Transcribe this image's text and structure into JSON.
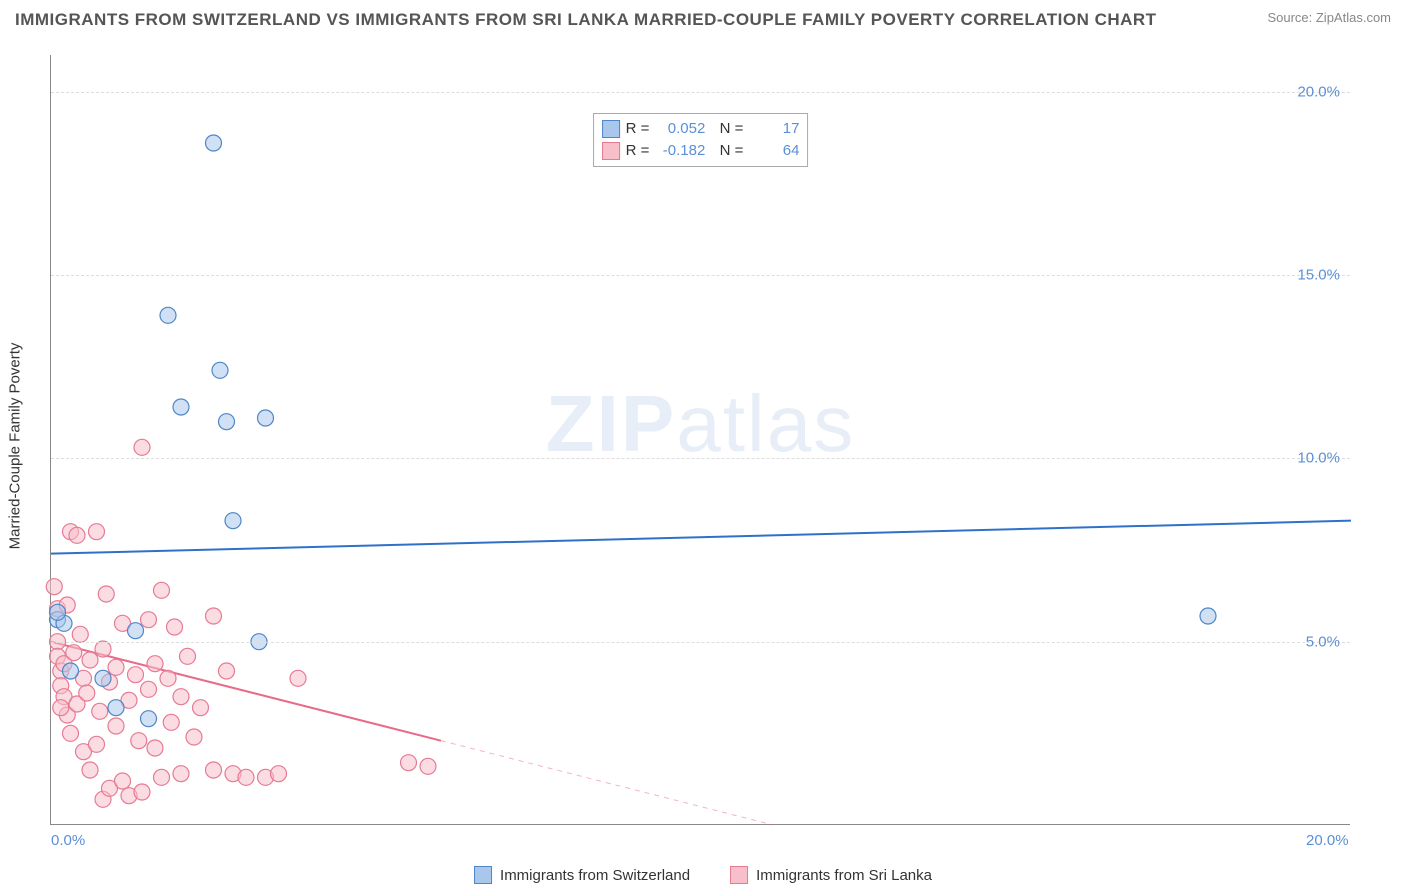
{
  "title": "IMMIGRANTS FROM SWITZERLAND VS IMMIGRANTS FROM SRI LANKA MARRIED-COUPLE FAMILY POVERTY CORRELATION CHART",
  "source": "Source: ZipAtlas.com",
  "y_axis_label": "Married-Couple Family Poverty",
  "watermark_bold": "ZIP",
  "watermark_light": "atlas",
  "chart": {
    "type": "scatter",
    "xlim": [
      0,
      20
    ],
    "ylim": [
      0,
      21
    ],
    "x_ticks": [
      {
        "v": 0,
        "label": "0.0%"
      },
      {
        "v": 20,
        "label": "20.0%"
      }
    ],
    "y_ticks": [
      {
        "v": 5,
        "label": "5.0%"
      },
      {
        "v": 10,
        "label": "10.0%"
      },
      {
        "v": 15,
        "label": "15.0%"
      },
      {
        "v": 20,
        "label": "20.0%"
      }
    ],
    "marker_radius": 8,
    "marker_opacity": 0.55,
    "marker_stroke_width": 1.2,
    "line_width": 2,
    "series": [
      {
        "name": "Immigrants from Switzerland",
        "fill": "#a9c7ec",
        "stroke": "#4f86c6",
        "line_color": "#2f70c9",
        "r_value": "0.052",
        "n_value": "17",
        "points": [
          [
            0.1,
            5.6
          ],
          [
            0.2,
            5.5
          ],
          [
            0.3,
            4.2
          ],
          [
            0.8,
            4.0
          ],
          [
            1.0,
            3.2
          ],
          [
            1.3,
            5.3
          ],
          [
            1.5,
            2.9
          ],
          [
            1.8,
            13.9
          ],
          [
            2.0,
            11.4
          ],
          [
            2.5,
            18.6
          ],
          [
            2.6,
            12.4
          ],
          [
            2.7,
            11.0
          ],
          [
            2.8,
            8.3
          ],
          [
            3.2,
            5.0
          ],
          [
            3.3,
            11.1
          ],
          [
            17.8,
            5.7
          ],
          [
            0.1,
            5.8
          ]
        ],
        "trend": {
          "x1": 0,
          "y1": 7.4,
          "x2": 20,
          "y2": 8.3,
          "solid_until": 20
        }
      },
      {
        "name": "Immigrants from Sri Lanka",
        "fill": "#f6bfca",
        "stroke": "#e77a93",
        "line_color": "#e86b88",
        "r_value": "-0.182",
        "n_value": "64",
        "points": [
          [
            0.05,
            6.5
          ],
          [
            0.1,
            5.9
          ],
          [
            0.1,
            5.0
          ],
          [
            0.1,
            4.6
          ],
          [
            0.15,
            4.2
          ],
          [
            0.15,
            3.8
          ],
          [
            0.2,
            4.4
          ],
          [
            0.2,
            3.5
          ],
          [
            0.25,
            6.0
          ],
          [
            0.25,
            3.0
          ],
          [
            0.3,
            8.0
          ],
          [
            0.3,
            2.5
          ],
          [
            0.35,
            4.7
          ],
          [
            0.4,
            7.9
          ],
          [
            0.4,
            3.3
          ],
          [
            0.45,
            5.2
          ],
          [
            0.5,
            2.0
          ],
          [
            0.5,
            4.0
          ],
          [
            0.55,
            3.6
          ],
          [
            0.6,
            1.5
          ],
          [
            0.6,
            4.5
          ],
          [
            0.7,
            8.0
          ],
          [
            0.7,
            2.2
          ],
          [
            0.75,
            3.1
          ],
          [
            0.8,
            4.8
          ],
          [
            0.8,
            0.7
          ],
          [
            0.85,
            6.3
          ],
          [
            0.9,
            3.9
          ],
          [
            0.9,
            1.0
          ],
          [
            1.0,
            2.7
          ],
          [
            1.0,
            4.3
          ],
          [
            1.1,
            5.5
          ],
          [
            1.1,
            1.2
          ],
          [
            1.2,
            3.4
          ],
          [
            1.2,
            0.8
          ],
          [
            1.3,
            4.1
          ],
          [
            1.35,
            2.3
          ],
          [
            1.4,
            10.3
          ],
          [
            1.4,
            0.9
          ],
          [
            1.5,
            5.6
          ],
          [
            1.5,
            3.7
          ],
          [
            1.6,
            2.1
          ],
          [
            1.6,
            4.4
          ],
          [
            1.7,
            6.4
          ],
          [
            1.7,
            1.3
          ],
          [
            1.8,
            4.0
          ],
          [
            1.85,
            2.8
          ],
          [
            1.9,
            5.4
          ],
          [
            2.0,
            3.5
          ],
          [
            2.0,
            1.4
          ],
          [
            2.1,
            4.6
          ],
          [
            2.2,
            2.4
          ],
          [
            2.3,
            3.2
          ],
          [
            2.5,
            5.7
          ],
          [
            2.5,
            1.5
          ],
          [
            2.7,
            4.2
          ],
          [
            2.8,
            1.4
          ],
          [
            3.0,
            1.3
          ],
          [
            3.3,
            1.3
          ],
          [
            3.5,
            1.4
          ],
          [
            3.8,
            4.0
          ],
          [
            5.5,
            1.7
          ],
          [
            5.8,
            1.6
          ],
          [
            0.15,
            3.2
          ]
        ],
        "trend": {
          "x1": 0,
          "y1": 5.0,
          "x2": 20,
          "y2": -4.0,
          "solid_until": 6.0
        }
      }
    ]
  },
  "colors": {
    "title": "#555555",
    "axis_text": "#333333",
    "tick_text": "#5b8fd6",
    "grid": "#dddddd",
    "border": "#888888",
    "background": "#ffffff"
  }
}
